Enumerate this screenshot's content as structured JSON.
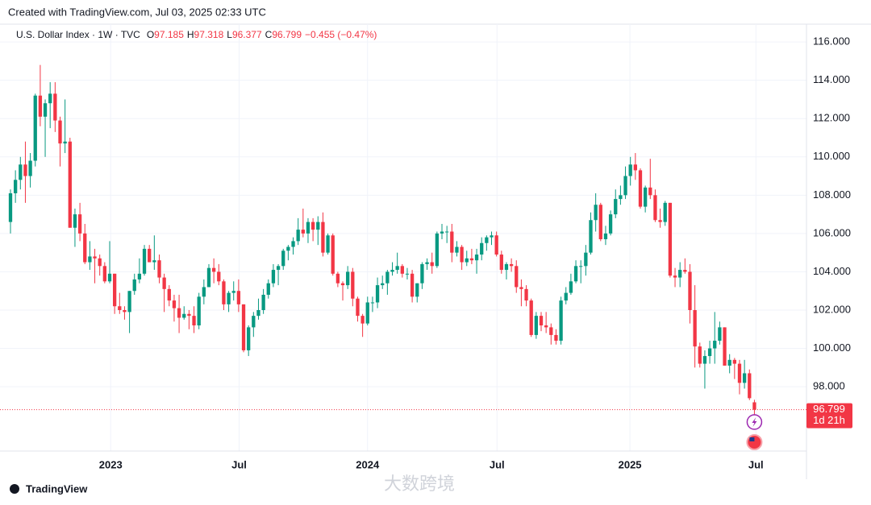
{
  "caption": "Created with TradingView.com, Jul 03, 2025 02:33 UTC",
  "watermark": "大数跨境",
  "brand": "TradingView",
  "chart_data": {
    "type": "candlestick",
    "title": "U.S. Dollar Index · 1W · TVC",
    "ohlc_letters": [
      "O",
      "H",
      "L",
      "C"
    ],
    "change_label": "−0.455 (−0.47%)",
    "countdown": "1d 21h",
    "up_color": "#089981",
    "down_color": "#f23645",
    "grid": true,
    "ylim": [
      94.64,
      116.93
    ],
    "yticks": [
      {
        "value": 98,
        "label": "98.000"
      },
      {
        "value": 100,
        "label": "100.000"
      },
      {
        "value": 102,
        "label": "102.000"
      },
      {
        "value": 104,
        "label": "104.000"
      },
      {
        "value": 106,
        "label": "106.000"
      },
      {
        "value": 108,
        "label": "108.000"
      },
      {
        "value": 110,
        "label": "110.000"
      },
      {
        "value": 112,
        "label": "112.000"
      },
      {
        "value": 114,
        "label": "114.000"
      },
      {
        "value": 116,
        "label": "116.000"
      }
    ],
    "xlim": [
      -0.5,
      160.5
    ],
    "xticks": [
      {
        "value": 20.2,
        "label": "2023"
      },
      {
        "value": 46.1,
        "label": "Jul"
      },
      {
        "value": 72,
        "label": "2024"
      },
      {
        "value": 98.1,
        "label": "Jul"
      },
      {
        "value": 124.9,
        "label": "2025"
      },
      {
        "value": 150.3,
        "label": "Jul"
      }
    ],
    "candles": [
      [
        106.6,
        108.3,
        106.0,
        108.1
      ],
      [
        108.1,
        109.3,
        107.6,
        108.8
      ],
      [
        108.8,
        110.0,
        108.3,
        109.6
      ],
      [
        109.6,
        110.8,
        107.6,
        109.0
      ],
      [
        109.0,
        110.2,
        108.4,
        109.8
      ],
      [
        109.8,
        113.3,
        109.5,
        113.2
      ],
      [
        113.2,
        114.8,
        111.6,
        112.1
      ],
      [
        112.1,
        113.0,
        110.0,
        112.8
      ],
      [
        112.8,
        113.9,
        111.5,
        113.3
      ],
      [
        113.3,
        113.9,
        111.3,
        111.9
      ],
      [
        111.9,
        112.1,
        109.5,
        110.7
      ],
      [
        110.7,
        113.0,
        110.2,
        110.8
      ],
      [
        110.8,
        111.0,
        106.3,
        106.3
      ],
      [
        106.3,
        107.3,
        105.3,
        107.0
      ],
      [
        107.0,
        107.6,
        105.6,
        106.0
      ],
      [
        106.0,
        106.5,
        104.4,
        104.5
      ],
      [
        104.5,
        105.6,
        104.1,
        104.8
      ],
      [
        104.8,
        105.2,
        103.4,
        104.7
      ],
      [
        104.7,
        104.9,
        103.8,
        104.3
      ],
      [
        104.3,
        104.5,
        103.4,
        103.5
      ],
      [
        103.5,
        105.6,
        103.4,
        103.9
      ],
      [
        103.9,
        103.9,
        101.8,
        102.2
      ],
      [
        102.2,
        102.9,
        101.8,
        102.0
      ],
      [
        102.0,
        102.2,
        101.5,
        101.9
      ],
      [
        101.9,
        103.0,
        100.8,
        103.0
      ],
      [
        103.0,
        103.9,
        102.8,
        103.6
      ],
      [
        103.6,
        104.7,
        103.4,
        103.9
      ],
      [
        103.9,
        105.4,
        103.8,
        105.2
      ],
      [
        105.2,
        105.4,
        104.5,
        104.5
      ],
      [
        104.5,
        105.9,
        104.1,
        104.6
      ],
      [
        104.6,
        104.9,
        103.4,
        103.7
      ],
      [
        103.7,
        103.9,
        101.9,
        103.1
      ],
      [
        103.1,
        103.3,
        102.2,
        102.5
      ],
      [
        102.5,
        102.8,
        101.4,
        102.1
      ],
      [
        102.1,
        102.8,
        100.8,
        101.6
      ],
      [
        101.6,
        102.2,
        101.5,
        101.8
      ],
      [
        101.8,
        102.0,
        101.0,
        101.7
      ],
      [
        101.7,
        102.2,
        100.8,
        101.2
      ],
      [
        101.2,
        102.9,
        101.0,
        102.7
      ],
      [
        102.7,
        103.6,
        102.3,
        103.2
      ],
      [
        103.2,
        104.4,
        103.2,
        104.2
      ],
      [
        104.2,
        104.7,
        103.4,
        104.0
      ],
      [
        104.0,
        104.4,
        103.3,
        103.5
      ],
      [
        103.5,
        103.6,
        102.0,
        102.3
      ],
      [
        102.3,
        103.0,
        101.9,
        102.9
      ],
      [
        102.9,
        103.5,
        102.5,
        103.0
      ],
      [
        103.0,
        103.6,
        101.9,
        102.3
      ],
      [
        102.3,
        102.3,
        99.8,
        99.9
      ],
      [
        99.9,
        101.2,
        99.6,
        101.1
      ],
      [
        101.1,
        101.9,
        100.6,
        101.7
      ],
      [
        101.7,
        102.6,
        101.5,
        102.0
      ],
      [
        102.0,
        103.1,
        101.8,
        102.8
      ],
      [
        102.8,
        103.6,
        102.6,
        103.4
      ],
      [
        103.4,
        104.4,
        103.2,
        104.1
      ],
      [
        104.1,
        104.4,
        103.3,
        104.3
      ],
      [
        104.3,
        105.2,
        104.1,
        105.1
      ],
      [
        105.1,
        105.4,
        104.6,
        105.3
      ],
      [
        105.3,
        105.8,
        104.9,
        105.6
      ],
      [
        105.6,
        106.8,
        105.4,
        106.2
      ],
      [
        106.2,
        107.3,
        105.8,
        106.0
      ],
      [
        106.0,
        106.8,
        105.5,
        106.6
      ],
      [
        106.6,
        106.8,
        105.6,
        106.2
      ],
      [
        106.2,
        106.9,
        105.4,
        106.6
      ],
      [
        106.6,
        107.1,
        104.8,
        105.0
      ],
      [
        105.0,
        106.0,
        104.9,
        105.9
      ],
      [
        105.9,
        106.0,
        103.8,
        103.9
      ],
      [
        103.9,
        104.0,
        103.2,
        103.4
      ],
      [
        103.4,
        103.5,
        102.5,
        103.3
      ],
      [
        103.3,
        104.3,
        103.1,
        104.0
      ],
      [
        104.0,
        104.2,
        102.2,
        102.6
      ],
      [
        102.6,
        102.7,
        101.4,
        101.7
      ],
      [
        101.7,
        101.8,
        100.6,
        101.3
      ],
      [
        101.3,
        102.7,
        101.2,
        102.4
      ],
      [
        102.4,
        102.7,
        101.9,
        102.4
      ],
      [
        102.4,
        103.7,
        102.1,
        103.3
      ],
      [
        103.3,
        103.8,
        103.1,
        103.4
      ],
      [
        103.4,
        104.1,
        102.8,
        104.0
      ],
      [
        104.0,
        104.5,
        103.8,
        104.1
      ],
      [
        104.1,
        105.0,
        103.9,
        104.3
      ],
      [
        104.3,
        104.4,
        103.7,
        103.9
      ],
      [
        103.9,
        104.2,
        103.6,
        103.9
      ],
      [
        103.9,
        104.1,
        102.4,
        102.7
      ],
      [
        102.7,
        103.4,
        102.4,
        103.4
      ],
      [
        103.4,
        104.5,
        103.1,
        104.4
      ],
      [
        104.4,
        104.7,
        104.1,
        104.5
      ],
      [
        104.5,
        105.0,
        103.9,
        104.3
      ],
      [
        104.3,
        106.1,
        104.2,
        106.0
      ],
      [
        106.0,
        106.5,
        105.7,
        106.1
      ],
      [
        106.1,
        106.4,
        105.5,
        106.1
      ],
      [
        106.1,
        106.5,
        104.5,
        105.0
      ],
      [
        105.0,
        105.6,
        104.8,
        105.3
      ],
      [
        105.3,
        105.4,
        104.1,
        104.5
      ],
      [
        104.5,
        105.1,
        104.3,
        104.7
      ],
      [
        104.7,
        105.2,
        104.4,
        104.6
      ],
      [
        104.6,
        105.2,
        103.9,
        104.9
      ],
      [
        104.9,
        105.8,
        104.6,
        105.5
      ],
      [
        105.5,
        105.9,
        105.1,
        105.8
      ],
      [
        105.8,
        106.1,
        105.4,
        105.9
      ],
      [
        105.9,
        106.1,
        104.8,
        104.9
      ],
      [
        104.9,
        105.1,
        103.9,
        104.1
      ],
      [
        104.1,
        104.5,
        103.6,
        104.4
      ],
      [
        104.4,
        104.7,
        104.0,
        104.3
      ],
      [
        104.3,
        104.6,
        102.9,
        103.2
      ],
      [
        103.2,
        103.6,
        102.2,
        103.1
      ],
      [
        103.1,
        103.3,
        102.2,
        102.5
      ],
      [
        102.5,
        102.6,
        100.6,
        100.7
      ],
      [
        100.7,
        101.9,
        100.5,
        101.7
      ],
      [
        101.7,
        101.9,
        100.9,
        101.2
      ],
      [
        101.2,
        101.9,
        100.8,
        101.1
      ],
      [
        101.1,
        101.3,
        100.2,
        100.7
      ],
      [
        100.7,
        101.0,
        100.2,
        100.4
      ],
      [
        100.4,
        102.7,
        100.2,
        102.5
      ],
      [
        102.5,
        103.2,
        102.3,
        102.9
      ],
      [
        102.9,
        103.9,
        102.8,
        103.5
      ],
      [
        103.5,
        104.6,
        103.4,
        104.3
      ],
      [
        104.3,
        104.6,
        103.4,
        104.3
      ],
      [
        104.3,
        105.4,
        103.8,
        105.0
      ],
      [
        105.0,
        107.1,
        104.9,
        106.7
      ],
      [
        106.7,
        108.1,
        106.1,
        107.5
      ],
      [
        107.5,
        107.6,
        105.6,
        105.7
      ],
      [
        105.7,
        106.4,
        105.4,
        106.0
      ],
      [
        106.0,
        107.2,
        105.9,
        107.0
      ],
      [
        107.0,
        108.3,
        106.8,
        107.8
      ],
      [
        107.8,
        108.5,
        107.5,
        108.0
      ],
      [
        108.0,
        109.5,
        107.8,
        109.0
      ],
      [
        109.0,
        110.0,
        108.5,
        109.6
      ],
      [
        109.6,
        110.2,
        108.8,
        109.3
      ],
      [
        109.3,
        109.4,
        107.3,
        107.4
      ],
      [
        107.4,
        108.5,
        107.1,
        108.4
      ],
      [
        108.4,
        109.9,
        107.8,
        108.0
      ],
      [
        108.0,
        108.3,
        106.6,
        106.7
      ],
      [
        106.7,
        107.3,
        106.3,
        106.6
      ],
      [
        106.6,
        107.7,
        106.4,
        107.6
      ],
      [
        107.6,
        107.6,
        103.7,
        103.8
      ],
      [
        103.8,
        104.2,
        103.2,
        103.7
      ],
      [
        103.7,
        104.5,
        103.2,
        104.1
      ],
      [
        104.1,
        104.7,
        103.9,
        104.0
      ],
      [
        104.0,
        104.4,
        101.3,
        102.0
      ],
      [
        102.0,
        103.3,
        99.0,
        100.1
      ],
      [
        100.1,
        100.3,
        99.0,
        99.2
      ],
      [
        99.2,
        99.9,
        97.9,
        99.6
      ],
      [
        99.6,
        100.4,
        99.2,
        100.0
      ],
      [
        100.0,
        101.9,
        99.2,
        100.4
      ],
      [
        100.4,
        101.4,
        100.2,
        101.1
      ],
      [
        101.1,
        101.1,
        99.1,
        99.1
      ],
      [
        99.1,
        99.7,
        98.7,
        99.4
      ],
      [
        99.4,
        99.5,
        98.4,
        99.2
      ],
      [
        99.2,
        99.4,
        97.6,
        98.2
      ],
      [
        98.2,
        99.4,
        97.9,
        98.7
      ],
      [
        98.7,
        98.9,
        97.3,
        97.4
      ],
      [
        97.185,
        97.318,
        96.377,
        96.799
      ]
    ]
  }
}
